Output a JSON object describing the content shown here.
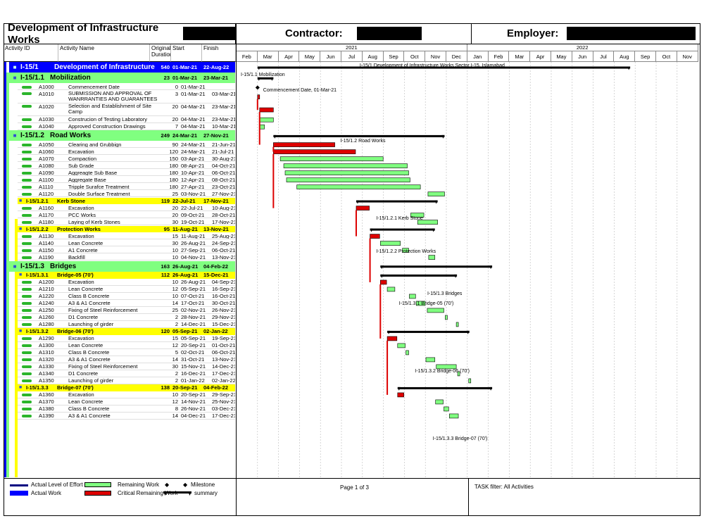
{
  "header": {
    "title": "Development of Infrastructure Works",
    "contractor_label": "Contractor:",
    "employer_label": "Employer:"
  },
  "columns": {
    "activity_id": "Activity ID",
    "activity_name": "Activity Name",
    "duration": "Original Duration",
    "start": "Start",
    "finish": "Finish"
  },
  "timescale": {
    "years": [
      "2021",
      "2022"
    ],
    "months": [
      "Feb",
      "Mar",
      "Apr",
      "May",
      "Jun",
      "Jul",
      "Aug",
      "Sep",
      "Oct",
      "Nov",
      "Dec",
      "Jan",
      "Feb",
      "Mar",
      "Apr",
      "May",
      "Jun",
      "Jul",
      "Aug",
      "Sep",
      "Oct",
      "Nov"
    ]
  },
  "rows": [
    {
      "level": 0,
      "id": "I-15/1",
      "name": "Development of Infrastructure",
      "dur": "540",
      "start": "01-Mar-21",
      "finish": "22-Aug-22",
      "bar": {
        "s": 0,
        "e": 540
      }
    },
    {
      "level": 1,
      "id": "I-15/1.1",
      "name": "Mobilization",
      "dur": "23",
      "start": "01-Mar-21",
      "finish": "23-Mar-21",
      "bar": {
        "s": 0,
        "e": 23
      }
    },
    {
      "level": 3,
      "id": "A1000",
      "name": "Commencement Date",
      "dur": "0",
      "start": "01-Mar-21",
      "finish": "",
      "milestone": 0
    },
    {
      "level": 3,
      "id": "A1010",
      "name": "SUBMISSION AND APPROVAL OF WANRRANTIES AND GUARANTEES",
      "dur": "3",
      "start": "01-Mar-21",
      "finish": "03-Mar-21",
      "tall": true,
      "bar": {
        "s": 0,
        "e": 3,
        "crit": true
      }
    },
    {
      "level": 3,
      "id": "A1020",
      "name": "Selection and Establishment of Site Camp",
      "dur": "20",
      "start": "04-Mar-21",
      "finish": "23-Mar-21",
      "tall": true,
      "bar": {
        "s": 3,
        "e": 23,
        "crit": true
      }
    },
    {
      "level": 3,
      "id": "A1030",
      "name": "Construcion of Testing Laboratory",
      "dur": "20",
      "start": "04-Mar-21",
      "finish": "23-Mar-21",
      "bar": {
        "s": 3,
        "e": 23
      }
    },
    {
      "level": 3,
      "id": "A1040",
      "name": "Approved Construction Drawings",
      "dur": "7",
      "start": "04-Mar-21",
      "finish": "10-Mar-21",
      "bar": {
        "s": 3,
        "e": 10
      }
    },
    {
      "level": 1,
      "id": "I-15/1.2",
      "name": "Road Works",
      "dur": "249",
      "start": "24-Mar-21",
      "finish": "27-Nov-21",
      "bar": {
        "s": 23,
        "e": 271
      }
    },
    {
      "level": 3,
      "id": "A1050",
      "name": "Clearing and Grubbign",
      "dur": "90",
      "start": "24-Mar-21",
      "finish": "21-Jun-21",
      "bar": {
        "s": 23,
        "e": 112,
        "crit": true
      }
    },
    {
      "level": 3,
      "id": "A1060",
      "name": "Excavation",
      "dur": "120",
      "start": "24-Mar-21",
      "finish": "21-Jul-21",
      "bar": {
        "s": 23,
        "e": 142,
        "crit": true
      }
    },
    {
      "level": 3,
      "id": "A1070",
      "name": "Compaction",
      "dur": "150",
      "start": "03-Apr-21",
      "finish": "30-Aug-21",
      "bar": {
        "s": 33,
        "e": 182
      }
    },
    {
      "level": 3,
      "id": "A1080",
      "name": "Sub Grade",
      "dur": "180",
      "start": "08-Apr-21",
      "finish": "04-Oct-21",
      "bar": {
        "s": 38,
        "e": 217
      }
    },
    {
      "level": 3,
      "id": "A1090",
      "name": "Aggreagte Sub Base",
      "dur": "180",
      "start": "10-Apr-21",
      "finish": "06-Oct-21",
      "bar": {
        "s": 40,
        "e": 219
      }
    },
    {
      "level": 3,
      "id": "A1100",
      "name": "Aggregate Base",
      "dur": "180",
      "start": "12-Apr-21",
      "finish": "08-Oct-21",
      "bar": {
        "s": 42,
        "e": 221
      }
    },
    {
      "level": 3,
      "id": "A1110",
      "name": "Tripple Surafce Treatment",
      "dur": "180",
      "start": "27-Apr-21",
      "finish": "23-Oct-21",
      "bar": {
        "s": 57,
        "e": 236
      }
    },
    {
      "level": 3,
      "id": "A1120",
      "name": "Double Surface Treatment",
      "dur": "25",
      "start": "03-Nov-21",
      "finish": "27-Nov-21",
      "bar": {
        "s": 247,
        "e": 271
      }
    },
    {
      "level": 2,
      "id": "I-15/1.2.1",
      "name": "Kerb Stone",
      "dur": "119",
      "start": "22-Jul-21",
      "finish": "17-Nov-21",
      "bar": {
        "s": 143,
        "e": 261
      }
    },
    {
      "level": 3,
      "id": "A1160",
      "name": "Excavation",
      "dur": "20",
      "start": "22-Jul-21",
      "finish": "10-Aug-21",
      "bar": {
        "s": 143,
        "e": 162,
        "crit": true
      }
    },
    {
      "level": 3,
      "id": "A1170",
      "name": "PCC Works",
      "dur": "20",
      "start": "09-Oct-21",
      "finish": "28-Oct-21",
      "bar": {
        "s": 222,
        "e": 241
      }
    },
    {
      "level": 3,
      "id": "A1180",
      "name": "Laying of Kerb Stones",
      "dur": "30",
      "start": "19-Oct-21",
      "finish": "17-Nov-21",
      "bar": {
        "s": 232,
        "e": 261
      }
    },
    {
      "level": 2,
      "id": "I-15/1.2.2",
      "name": "Protection Works",
      "dur": "95",
      "start": "11-Aug-21",
      "finish": "13-Nov-21",
      "bar": {
        "s": 163,
        "e": 257
      }
    },
    {
      "level": 3,
      "id": "A1130",
      "name": "Excavation",
      "dur": "15",
      "start": "11-Aug-21",
      "finish": "25-Aug-21",
      "bar": {
        "s": 163,
        "e": 177,
        "crit": true
      }
    },
    {
      "level": 3,
      "id": "A1140",
      "name": "Lean Concrete",
      "dur": "30",
      "start": "26-Aug-21",
      "finish": "24-Sep-21",
      "bar": {
        "s": 178,
        "e": 207
      }
    },
    {
      "level": 3,
      "id": "A1150",
      "name": "A1 Concrete",
      "dur": "10",
      "start": "27-Sep-21",
      "finish": "06-Oct-21",
      "bar": {
        "s": 210,
        "e": 219
      }
    },
    {
      "level": 3,
      "id": "A1190",
      "name": "Backfill",
      "dur": "10",
      "start": "04-Nov-21",
      "finish": "13-Nov-21",
      "bar": {
        "s": 248,
        "e": 257
      }
    },
    {
      "level": 1,
      "id": "I-15/1.3",
      "name": "Bridges",
      "dur": "163",
      "start": "26-Aug-21",
      "finish": "04-Feb-22",
      "bar": {
        "s": 178,
        "e": 340
      }
    },
    {
      "level": 2,
      "id": "I-15/1.3.1",
      "name": "Bridge-05 (70')",
      "dur": "112",
      "start": "26-Aug-21",
      "finish": "15-Dec-21",
      "bar": {
        "s": 178,
        "e": 289
      }
    },
    {
      "level": 3,
      "id": "A1200",
      "name": "Excavation",
      "dur": "10",
      "start": "26-Aug-21",
      "finish": "04-Sep-21",
      "bar": {
        "s": 178,
        "e": 187,
        "crit": true
      }
    },
    {
      "level": 3,
      "id": "A1210",
      "name": "Lean Concrete",
      "dur": "12",
      "start": "05-Sep-21",
      "finish": "16-Sep-21",
      "bar": {
        "s": 188,
        "e": 199
      }
    },
    {
      "level": 3,
      "id": "A1220",
      "name": "Class B Concrete",
      "dur": "10",
      "start": "07-Oct-21",
      "finish": "16-Oct-21",
      "bar": {
        "s": 220,
        "e": 229
      }
    },
    {
      "level": 3,
      "id": "A1240",
      "name": "A3 & A1 Concrete",
      "dur": "14",
      "start": "17-Oct-21",
      "finish": "30-Oct-21",
      "bar": {
        "s": 230,
        "e": 243
      }
    },
    {
      "level": 3,
      "id": "A1250",
      "name": "Fixing of Steel Reinforcement",
      "dur": "25",
      "start": "02-Nov-21",
      "finish": "26-Nov-21",
      "bar": {
        "s": 246,
        "e": 270
      }
    },
    {
      "level": 3,
      "id": "A1260",
      "name": "D1 Concrete",
      "dur": "2",
      "start": "28-Nov-21",
      "finish": "29-Nov-21",
      "bar": {
        "s": 272,
        "e": 273
      }
    },
    {
      "level": 3,
      "id": "A1280",
      "name": "Launching of girder",
      "dur": "2",
      "start": "14-Dec-21",
      "finish": "15-Dec-21",
      "bar": {
        "s": 288,
        "e": 289
      }
    },
    {
      "level": 2,
      "id": "I-15/1.3.2",
      "name": "Bridge-06 (70')",
      "dur": "120",
      "start": "05-Sep-21",
      "finish": "02-Jan-22",
      "bar": {
        "s": 188,
        "e": 307
      }
    },
    {
      "level": 3,
      "id": "A1290",
      "name": "Excavation",
      "dur": "15",
      "start": "05-Sep-21",
      "finish": "19-Sep-21",
      "bar": {
        "s": 188,
        "e": 202,
        "crit": true
      }
    },
    {
      "level": 3,
      "id": "A1300",
      "name": "Lean Concrete",
      "dur": "12",
      "start": "20-Sep-21",
      "finish": "01-Oct-21",
      "bar": {
        "s": 203,
        "e": 214
      }
    },
    {
      "level": 3,
      "id": "A1310",
      "name": "Class B Concrete",
      "dur": "5",
      "start": "02-Oct-21",
      "finish": "06-Oct-21",
      "bar": {
        "s": 215,
        "e": 219
      }
    },
    {
      "level": 3,
      "id": "A1320",
      "name": "A3 & A1 Concrete",
      "dur": "14",
      "start": "31-Oct-21",
      "finish": "13-Nov-21",
      "bar": {
        "s": 244,
        "e": 257
      }
    },
    {
      "level": 3,
      "id": "A1330",
      "name": "Fixing of Steel Reinforcement",
      "dur": "30",
      "start": "15-Nov-21",
      "finish": "14-Dec-21",
      "bar": {
        "s": 259,
        "e": 288
      }
    },
    {
      "level": 3,
      "id": "A1340",
      "name": "D1 Concrete",
      "dur": "2",
      "start": "16-Dec-21",
      "finish": "17-Dec-21",
      "bar": {
        "s": 290,
        "e": 291
      }
    },
    {
      "level": 3,
      "id": "A1350",
      "name": "Launching of girder",
      "dur": "2",
      "start": "01-Jan-22",
      "finish": "02-Jan-22",
      "bar": {
        "s": 306,
        "e": 307
      }
    },
    {
      "level": 2,
      "id": "I-15/1.3.3",
      "name": "Bridge-07 (70')",
      "dur": "138",
      "start": "20-Sep-21",
      "finish": "04-Feb-22",
      "bar": {
        "s": 203,
        "e": 340
      }
    },
    {
      "level": 3,
      "id": "A1360",
      "name": "Excavation",
      "dur": "10",
      "start": "20-Sep-21",
      "finish": "29-Sep-21",
      "bar": {
        "s": 203,
        "e": 212,
        "crit": true
      }
    },
    {
      "level": 3,
      "id": "A1370",
      "name": "Lean Concrete",
      "dur": "12",
      "start": "14-Nov-21",
      "finish": "25-Nov-21",
      "bar": {
        "s": 258,
        "e": 269
      }
    },
    {
      "level": 3,
      "id": "A1380",
      "name": "Class B Concrete",
      "dur": "8",
      "start": "26-Nov-21",
      "finish": "03-Dec-21",
      "bar": {
        "s": 270,
        "e": 277
      }
    },
    {
      "level": 3,
      "id": "A1390",
      "name": "A3 & A1 Concrete",
      "dur": "14",
      "start": "04-Dec-21",
      "finish": "17-Dec-21",
      "bar": {
        "s": 278,
        "e": 291
      }
    }
  ],
  "gantt_labels": {
    "top": "I-15/1  Development of Infrastructure Works Sector I-15,  Islamabad",
    "mob": "I-15/1.1  Mobilization",
    "commence": "Commencement Date, 01-Mar-21",
    "road": "I-15/1.2  Road Works",
    "kerb": "I-15/1.2.1  Kerb Stone",
    "prot": "I-15/1.2.2  Protection Works",
    "bridges": "I-15/1.3  Bridges",
    "b05": "I-15/1.3.1  Bridge-05 (70')",
    "b06": "I-15/1.3.2  Bridge-06 (70')",
    "b07": "I-15/1.3.3  Bridge-07 (70')"
  },
  "legend": {
    "actual_level": "Actual Level of Effort",
    "actual_work": "Actual Work",
    "remaining": "Remaining Work",
    "critical": "Critical Remaining Work",
    "milestone": "Milestone",
    "summary": "summary"
  },
  "footer": {
    "page": "Page 1 of 3",
    "filter": "TASK filter: All Activities"
  },
  "colors": {
    "remaining": "#80ff80",
    "critical": "#dd0000",
    "summary": "#000000",
    "wbs0": "#0000ff",
    "wbs1": "#80ff80",
    "wbs2": "#ffff00"
  }
}
